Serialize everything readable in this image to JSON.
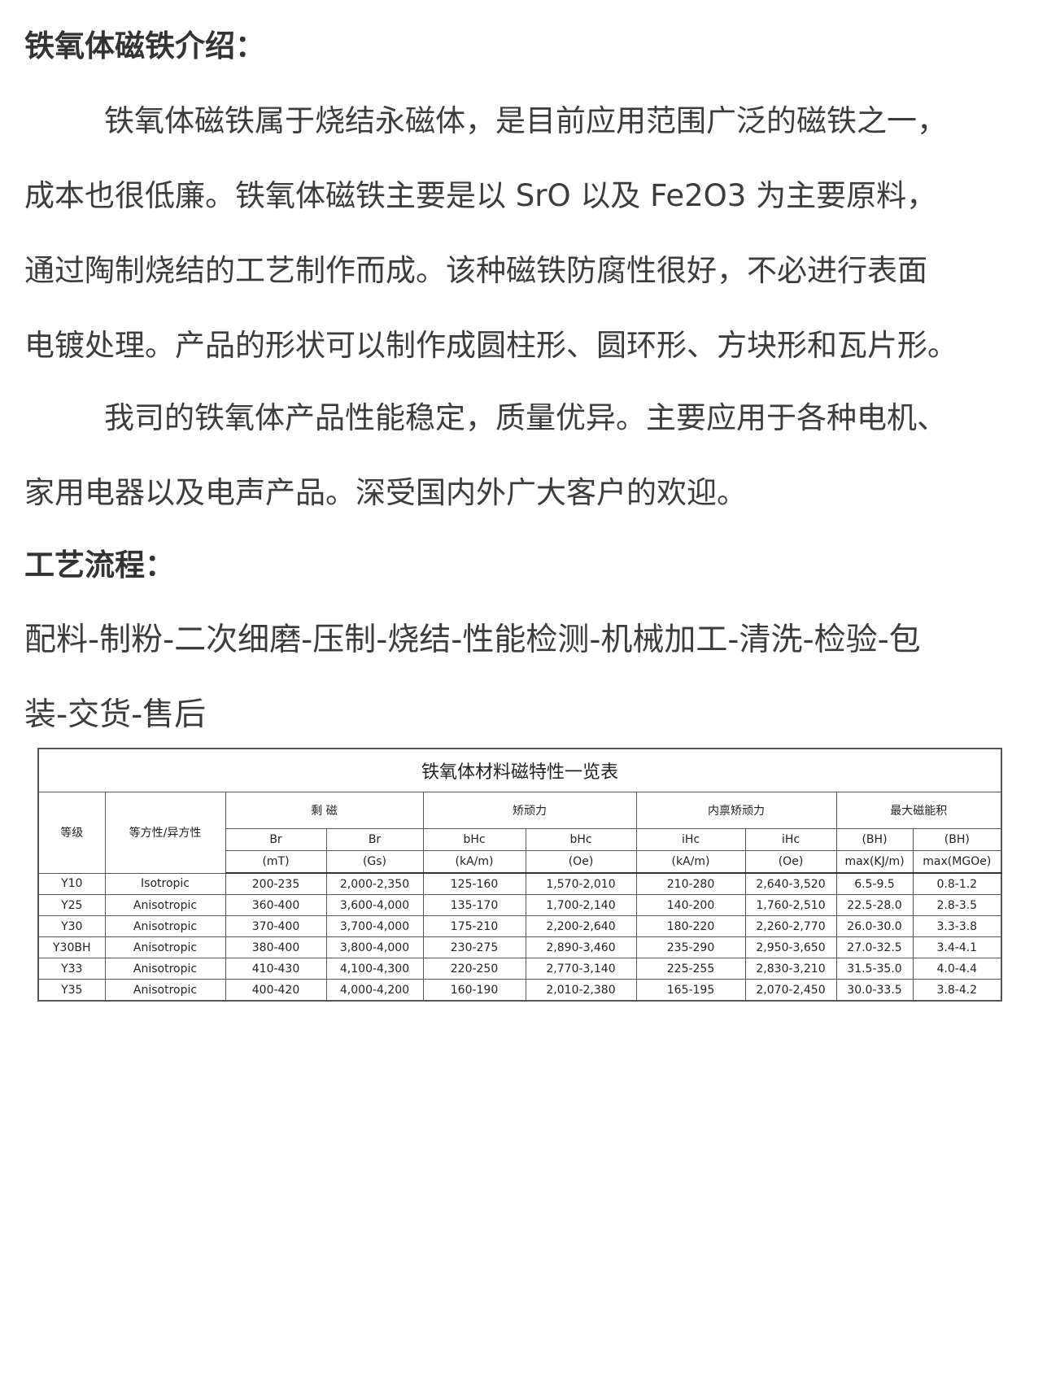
{
  "intro": {
    "heading": "铁氧体磁铁介绍：",
    "paragraph1_lines": [
      "铁氧体磁铁属于烧结永磁体，是目前应用范围广泛的磁铁之一，",
      "成本也很低廉。铁氧体磁铁主要是以 SrO 以及 Fe2O3 为主要原料，",
      "通过陶制烧结的工艺制作而成。该种磁铁防腐性很好，不必进行表面",
      "电镀处理。产品的形状可以制作成圆柱形、圆环形、方块形和瓦片形。"
    ],
    "paragraph2_lines": [
      "我司的铁氧体产品性能稳定，质量优异。主要应用于各种电机、",
      "家用电器以及电声产品。深受国内外广大客户的欢迎。"
    ]
  },
  "process": {
    "heading": "工艺流程：",
    "lines": [
      "配料-制粉-二次细磨-压制-烧结-性能检测-机械加工-清洗-检验-包",
      "装-交货-售后"
    ]
  },
  "table": {
    "title": "铁氧体材料磁特性一览表",
    "col_grade": "等级",
    "col_iso": "等方性/异方性",
    "groups": [
      "剩 磁",
      "矫顽力",
      "内禀矫顽力",
      "最大磁能积"
    ],
    "sub1": [
      "Br",
      "Br",
      "bHc",
      "bHc",
      "iHc",
      "iHc",
      "(BH)",
      "(BH)"
    ],
    "sub2": [
      "(mT)",
      "(Gs)",
      "(kA/m)",
      "(Oe)",
      "(kA/m)",
      "(Oe)",
      "max(KJ/m)",
      "max(MGOe)"
    ],
    "rows": [
      [
        "Y10",
        "Isotropic",
        "200-235",
        "2,000-2,350",
        "125-160",
        "1,570-2,010",
        "210-280",
        "2,640-3,520",
        "6.5-9.5",
        "0.8-1.2"
      ],
      [
        "Y25",
        "Anisotropic",
        "360-400",
        "3,600-4,000",
        "135-170",
        "1,700-2,140",
        "140-200",
        "1,760-2,510",
        "22.5-28.0",
        "2.8-3.5"
      ],
      [
        "Y30",
        "Anisotropic",
        "370-400",
        "3,700-4,000",
        "175-210",
        "2,200-2,640",
        "180-220",
        "2,260-2,770",
        "26.0-30.0",
        "3.3-3.8"
      ],
      [
        "Y30BH",
        "Anisotropic",
        "380-400",
        "3,800-4,000",
        "230-275",
        "2,890-3,460",
        "235-290",
        "2,950-3,650",
        "27.0-32.5",
        "3.4-4.1"
      ],
      [
        "Y33",
        "Anisotropic",
        "410-430",
        "4,100-4,300",
        "220-250",
        "2,770-3,140",
        "225-255",
        "2,830-3,210",
        "31.5-35.0",
        "4.0-4.4"
      ],
      [
        "Y35",
        "Anisotropic",
        "400-420",
        "4,000-4,200",
        "160-190",
        "2,010-2,380",
        "165-195",
        "2,070-2,450",
        "30.0-33.5",
        "3.8-4.2"
      ]
    ]
  }
}
